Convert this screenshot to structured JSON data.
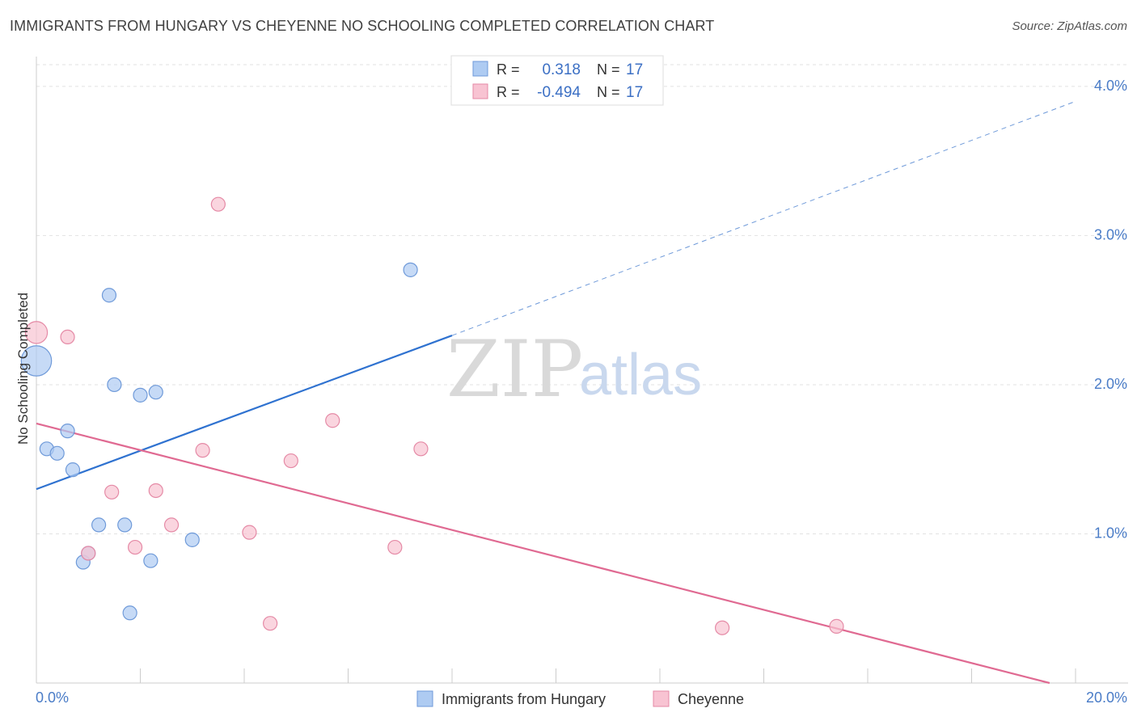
{
  "header": {
    "title": "IMMIGRANTS FROM HUNGARY VS CHEYENNE NO SCHOOLING COMPLETED CORRELATION CHART",
    "source": "Source: ZipAtlas.com"
  },
  "watermark": {
    "zip": "ZIP",
    "atlas": "atlas"
  },
  "legend": {
    "rows": [
      {
        "r_label": "R =",
        "r_value": "0.318",
        "n_label": "N =",
        "n_value": "17",
        "color": "#aecbf2",
        "stroke": "#6f9ad9"
      },
      {
        "r_label": "R =",
        "r_value": "-0.494",
        "n_label": "N =",
        "n_value": "17",
        "color": "#f8c3d2",
        "stroke": "#e58aa6"
      }
    ]
  },
  "bottom_legend": {
    "items": [
      {
        "label": "Immigrants from Hungary",
        "color": "#aecbf2",
        "stroke": "#6f9ad9"
      },
      {
        "label": "Cheyenne",
        "color": "#f8c3d2",
        "stroke": "#e58aa6"
      }
    ]
  },
  "chart_data": {
    "type": "scatter",
    "ylabel": "No Schooling Completed",
    "xlabel": "",
    "xlim": [
      0,
      20
    ],
    "ylim": [
      0,
      4.2
    ],
    "x_tick_labels": [
      "0.0%",
      "20.0%"
    ],
    "y_ticks": [
      1.0,
      2.0,
      3.0,
      4.0
    ],
    "y_tick_labels": [
      "1.0%",
      "2.0%",
      "3.0%",
      "4.0%"
    ],
    "grid": true,
    "series": [
      {
        "name": "Immigrants from Hungary",
        "color": "#6f9ad9",
        "fill": "#aecbf2",
        "points": [
          {
            "x": 0.0,
            "y": 2.16,
            "size": 2.2
          },
          {
            "x": 0.2,
            "y": 1.57,
            "size": 1
          },
          {
            "x": 0.4,
            "y": 1.54,
            "size": 1
          },
          {
            "x": 0.6,
            "y": 1.69,
            "size": 1
          },
          {
            "x": 0.7,
            "y": 1.43,
            "size": 1
          },
          {
            "x": 0.9,
            "y": 0.81,
            "size": 1
          },
          {
            "x": 1.0,
            "y": 0.87,
            "size": 1
          },
          {
            "x": 1.2,
            "y": 1.06,
            "size": 1
          },
          {
            "x": 1.4,
            "y": 2.6,
            "size": 1
          },
          {
            "x": 1.5,
            "y": 2.0,
            "size": 1
          },
          {
            "x": 1.8,
            "y": 0.47,
            "size": 1
          },
          {
            "x": 1.7,
            "y": 1.06,
            "size": 1
          },
          {
            "x": 2.0,
            "y": 1.93,
            "size": 1
          },
          {
            "x": 2.2,
            "y": 0.82,
            "size": 1
          },
          {
            "x": 2.3,
            "y": 1.95,
            "size": 1
          },
          {
            "x": 3.0,
            "y": 0.96,
            "size": 1
          },
          {
            "x": 7.2,
            "y": 2.77,
            "size": 1
          }
        ],
        "trend": {
          "x0": 0,
          "y0": 1.3,
          "x1": 8.0,
          "y1": 2.33,
          "x_ext": 20,
          "y_ext": 3.9
        }
      },
      {
        "name": "Cheyenne",
        "color": "#e58aa6",
        "fill": "#f8c3d2",
        "points": [
          {
            "x": 0.0,
            "y": 2.35,
            "size": 1.6
          },
          {
            "x": 0.6,
            "y": 2.32,
            "size": 1
          },
          {
            "x": 1.0,
            "y": 0.87,
            "size": 1
          },
          {
            "x": 1.45,
            "y": 1.28,
            "size": 1
          },
          {
            "x": 1.9,
            "y": 0.91,
            "size": 1
          },
          {
            "x": 2.3,
            "y": 1.29,
            "size": 1
          },
          {
            "x": 2.6,
            "y": 1.06,
            "size": 1
          },
          {
            "x": 3.2,
            "y": 1.56,
            "size": 1
          },
          {
            "x": 3.5,
            "y": 3.21,
            "size": 1
          },
          {
            "x": 4.1,
            "y": 1.01,
            "size": 1
          },
          {
            "x": 4.5,
            "y": 0.4,
            "size": 1
          },
          {
            "x": 4.9,
            "y": 1.49,
            "size": 1
          },
          {
            "x": 5.7,
            "y": 1.76,
            "size": 1
          },
          {
            "x": 6.9,
            "y": 0.91,
            "size": 1
          },
          {
            "x": 7.4,
            "y": 1.57,
            "size": 1
          },
          {
            "x": 13.2,
            "y": 0.37,
            "size": 1
          },
          {
            "x": 15.4,
            "y": 0.38,
            "size": 1
          }
        ],
        "trend": {
          "x0": 0,
          "y0": 1.74,
          "x1": 19.5,
          "y1": 0.0
        }
      }
    ]
  }
}
